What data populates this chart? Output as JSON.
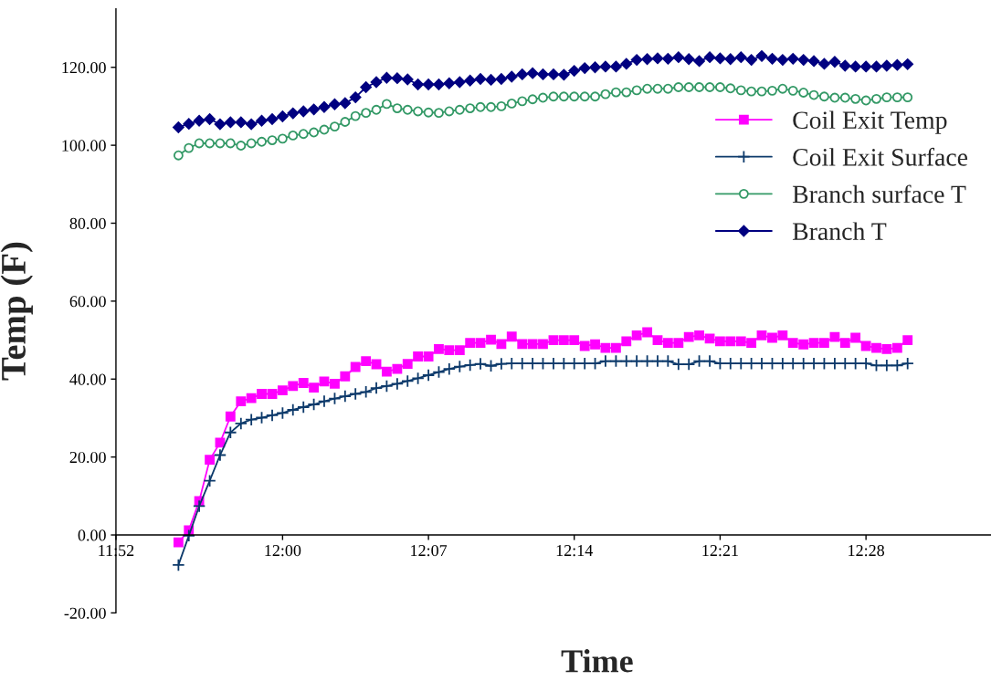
{
  "chart_data": {
    "type": "line",
    "xlabel": "Time",
    "ylabel": "Temp (F)",
    "x": [
      11.9167,
      11.925,
      11.9333,
      11.9417,
      11.95,
      11.9583,
      11.9667,
      11.975,
      11.9833,
      11.9917,
      12.0,
      12.0083,
      12.0167,
      12.025,
      12.0333,
      12.0417,
      12.05,
      12.0583,
      12.0667,
      12.075,
      12.0833,
      12.0917,
      12.1,
      12.1083,
      12.1167,
      12.125,
      12.1333,
      12.1417,
      12.15,
      12.1583,
      12.1667,
      12.175,
      12.1833,
      12.1917,
      12.2,
      12.2083,
      12.2167,
      12.225,
      12.2333,
      12.2417,
      12.25,
      12.2583,
      12.2667,
      12.275,
      12.2833,
      12.2917,
      12.3,
      12.3083,
      12.3167,
      12.325,
      12.3333,
      12.3417,
      12.35,
      12.3583,
      12.3667,
      12.375,
      12.3833,
      12.3917,
      12.4,
      12.4083,
      12.4167,
      12.425,
      12.4333,
      12.4417,
      12.45,
      12.4583,
      12.4667,
      12.475,
      12.4833,
      12.4917,
      12.5
    ],
    "series": [
      {
        "name": "Coil Exit Temp",
        "color": "#ff00ff",
        "marker": "square",
        "values": [
          -1.9,
          1.2,
          8.7,
          19.3,
          23.7,
          30.4,
          34.3,
          35.1,
          36.2,
          36.2,
          37.1,
          38.2,
          39.0,
          37.8,
          39.4,
          38.8,
          40.7,
          43.1,
          44.6,
          43.8,
          41.9,
          42.6,
          43.9,
          45.8,
          45.8,
          47.7,
          47.4,
          47.4,
          49.3,
          49.3,
          50.1,
          49.0,
          50.9,
          49.0,
          49.0,
          49.0,
          50.0,
          50.0,
          50.0,
          48.5,
          48.9,
          48.0,
          48.0,
          49.7,
          51.2,
          52.0,
          50.0,
          49.3,
          49.3,
          50.8,
          51.2,
          50.4,
          49.7,
          49.7,
          49.7,
          49.3,
          51.2,
          50.6,
          51.2,
          49.3,
          48.9,
          49.3,
          49.3,
          50.8,
          49.3,
          50.6,
          48.5,
          48.0,
          47.7,
          48.0,
          50.0
        ]
      },
      {
        "name": "Coil Exit Surface",
        "color": "#0d3a6b",
        "marker": "cross",
        "values": [
          -7.7,
          -0.2,
          7.4,
          13.9,
          20.5,
          26.3,
          28.6,
          29.6,
          30.1,
          30.7,
          31.3,
          32.1,
          32.8,
          33.5,
          34.3,
          35.0,
          35.6,
          36.2,
          36.7,
          37.7,
          38.2,
          38.8,
          39.5,
          40.2,
          41.0,
          41.8,
          42.6,
          43.2,
          43.6,
          43.9,
          43.4,
          43.9,
          44.0,
          44.0,
          44.0,
          44.0,
          44.0,
          44.0,
          44.0,
          44.0,
          44.0,
          44.6,
          44.6,
          44.6,
          44.6,
          44.6,
          44.6,
          44.6,
          43.8,
          43.8,
          44.6,
          44.6,
          44.0,
          44.0,
          44.0,
          44.0,
          44.0,
          44.0,
          44.0,
          44.0,
          44.0,
          44.0,
          44.0,
          44.0,
          44.0,
          44.0,
          44.0,
          43.5,
          43.5,
          43.5,
          44.0
        ]
      },
      {
        "name": "Branch surface T",
        "color": "#339966",
        "marker": "circle",
        "values": [
          97.4,
          99.3,
          100.5,
          100.5,
          100.5,
          100.5,
          99.9,
          100.5,
          100.9,
          101.3,
          101.7,
          102.5,
          102.9,
          103.3,
          104.0,
          104.8,
          106.0,
          107.5,
          108.3,
          109.1,
          110.6,
          109.5,
          109.1,
          108.7,
          108.4,
          108.3,
          108.7,
          109.1,
          109.5,
          109.8,
          109.8,
          110.0,
          110.7,
          111.3,
          111.8,
          112.2,
          112.5,
          112.5,
          112.5,
          112.5,
          112.5,
          113.1,
          113.6,
          113.6,
          114.1,
          114.5,
          114.5,
          114.5,
          114.9,
          114.9,
          114.9,
          114.9,
          114.9,
          114.6,
          114.1,
          113.8,
          113.8,
          114.0,
          114.5,
          114.0,
          113.5,
          112.9,
          112.5,
          112.2,
          112.2,
          111.9,
          111.5,
          111.9,
          112.3,
          112.3,
          112.3
        ]
      },
      {
        "name": "Branch T",
        "color": "#000080",
        "marker": "diamond",
        "values": [
          104.6,
          105.5,
          106.3,
          106.7,
          105.4,
          105.9,
          105.9,
          105.4,
          106.3,
          106.7,
          107.4,
          108.2,
          108.7,
          109.2,
          109.8,
          110.5,
          110.8,
          112.3,
          114.9,
          116.2,
          117.3,
          117.2,
          116.9,
          115.6,
          115.6,
          115.6,
          115.9,
          116.2,
          116.6,
          117.0,
          116.8,
          117.0,
          117.6,
          118.2,
          118.5,
          118.2,
          118.2,
          118.1,
          119.1,
          119.8,
          120.0,
          120.2,
          120.2,
          120.9,
          121.9,
          122.1,
          122.3,
          122.2,
          122.6,
          122.1,
          121.6,
          122.6,
          122.3,
          122.1,
          122.6,
          121.9,
          122.9,
          122.2,
          121.9,
          122.2,
          121.9,
          121.6,
          120.9,
          121.4,
          120.4,
          120.2,
          120.2,
          120.2,
          120.4,
          120.6,
          120.8
        ]
      }
    ],
    "xlim": [
      11.8667,
      12.5667
    ],
    "xticks": [
      {
        "value": 11.8667,
        "label": "11:52"
      },
      {
        "value": 12.0,
        "label": "12:00"
      },
      {
        "value": 12.1167,
        "label": "12:07"
      },
      {
        "value": 12.2333,
        "label": "12:14"
      },
      {
        "value": 12.35,
        "label": "12:21"
      },
      {
        "value": 12.4667,
        "label": "12:28"
      }
    ],
    "ylim": [
      -20,
      135
    ],
    "yticks": [
      {
        "value": -20,
        "label": "-20.00"
      },
      {
        "value": 0,
        "label": "0.00"
      },
      {
        "value": 20,
        "label": "20.00"
      },
      {
        "value": 40,
        "label": "40.00"
      },
      {
        "value": 60,
        "label": "60.00"
      },
      {
        "value": 80,
        "label": "80.00"
      },
      {
        "value": 100,
        "label": "100.00"
      },
      {
        "value": 120,
        "label": "120.00"
      }
    ],
    "grid": false,
    "legend": "right",
    "line_style": "solid"
  }
}
